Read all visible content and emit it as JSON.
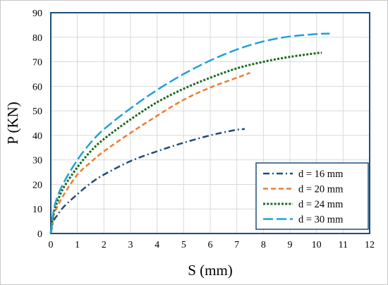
{
  "chart_data": {
    "type": "line",
    "xlabel": "S (mm)",
    "ylabel": "P (KN)",
    "xlim": [
      0,
      12
    ],
    "ylim": [
      0,
      90
    ],
    "xticks": [
      0,
      1,
      2,
      3,
      4,
      5,
      6,
      7,
      8,
      9,
      10,
      11,
      12
    ],
    "yticks": [
      0,
      10,
      20,
      30,
      40,
      50,
      60,
      70,
      80,
      90
    ],
    "grid": true,
    "legend_position": "bottom-right",
    "series": [
      {
        "name": "d = 16 mm",
        "color": "#1f4e79",
        "dash": "dash-dot",
        "x": [
          0,
          0.1,
          0.25,
          0.5,
          1,
          1.5,
          2,
          3,
          4,
          5,
          6,
          6.5,
          7,
          7.3
        ],
        "y": [
          0,
          5,
          7.5,
          11,
          16,
          20.5,
          24,
          29.5,
          33.5,
          37,
          40,
          41.2,
          42.3,
          42.6
        ]
      },
      {
        "name": "d = 20 mm",
        "color": "#ed7d31",
        "dash": "dashed",
        "x": [
          0,
          0.1,
          0.25,
          0.5,
          1,
          1.5,
          2,
          3,
          4,
          5,
          6,
          7,
          7.5
        ],
        "y": [
          0,
          7,
          11,
          16,
          24,
          29,
          33.5,
          41,
          48,
          54.5,
          59.5,
          63.5,
          65.5
        ]
      },
      {
        "name": "d = 24 mm",
        "color": "#1b6b1b",
        "dash": "dotted",
        "x": [
          0,
          0.1,
          0.25,
          0.5,
          1,
          1.5,
          2,
          3,
          4,
          5,
          6,
          7,
          8,
          9,
          10,
          10.2
        ],
        "y": [
          0,
          8,
          13,
          19,
          27,
          33.5,
          38.5,
          46.5,
          53.5,
          59,
          63.5,
          67.3,
          70,
          72,
          73.5,
          73.7
        ]
      },
      {
        "name": "d = 30 mm",
        "color": "#1fa2d6",
        "dash": "long-dash",
        "x": [
          0,
          0.1,
          0.25,
          0.5,
          1,
          1.5,
          2,
          3,
          4,
          5,
          6,
          7,
          8,
          9,
          10,
          10.5
        ],
        "y": [
          0,
          9,
          15,
          21,
          30,
          37,
          42.5,
          51,
          58.5,
          65,
          70.5,
          75,
          78.3,
          80.3,
          81.3,
          81.5
        ]
      }
    ]
  }
}
